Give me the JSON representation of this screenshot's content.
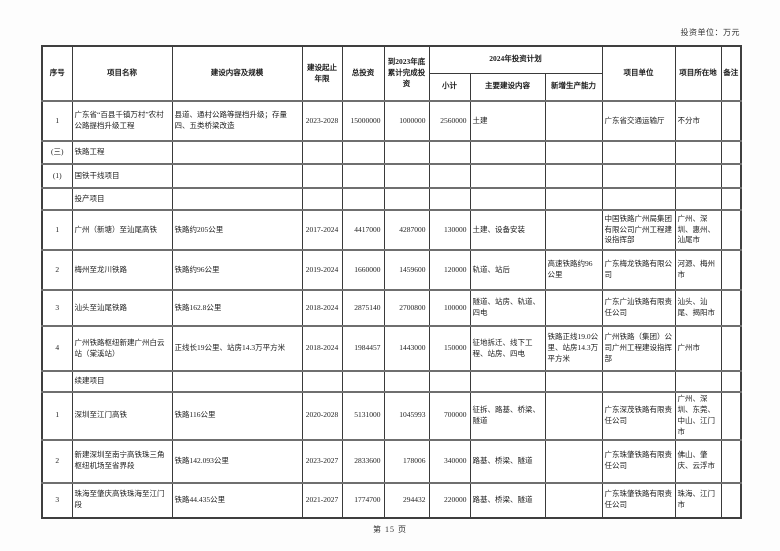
{
  "meta": {
    "unit_label": "投资单位：万元",
    "page_footer": "第 15 页"
  },
  "table": {
    "headers": {
      "seq": "序号",
      "name": "项目名称",
      "content": "建设内容及规模",
      "years": "建设起止年限",
      "total": "总投资",
      "done2023": "到2023年底累计完成投资",
      "plan2024": "2024年投资计划",
      "subtotal": "小计",
      "main_content": "主要建设内容",
      "capacity": "新增生产能力",
      "unit": "项目单位",
      "location": "项目所在地",
      "note": "备注"
    },
    "rows": [
      {
        "type": "data",
        "cells": [
          "1",
          "广东省“百县千镇万村”农村公路提档升级工程",
          "县道、通村公路等提档升级；存量四、五类桥梁改造",
          "2023-2028",
          "15000000",
          "1000000",
          "2560000",
          "土建",
          "",
          "广东省交通运输厅",
          "不分市",
          ""
        ]
      },
      {
        "type": "section",
        "cells": [
          "(三)",
          "铁路工程",
          "",
          "",
          "",
          "",
          "",
          "",
          "",
          "",
          "",
          ""
        ]
      },
      {
        "type": "section",
        "cells": [
          "(1)",
          "国铁干线项目",
          "",
          "",
          "",
          "",
          "",
          "",
          "",
          "",
          "",
          ""
        ]
      },
      {
        "type": "section",
        "cells": [
          "",
          "投产项目",
          "",
          "",
          "",
          "",
          "",
          "",
          "",
          "",
          "",
          ""
        ]
      },
      {
        "type": "data",
        "cells": [
          "1",
          "广州（新塘）至汕尾高铁",
          "铁路约205公里",
          "2017-2024",
          "4417000",
          "4287000",
          "130000",
          "土建、设备安装",
          "",
          "中国铁路广州局集团有限公司广州工程建设指挥部",
          "广州、深圳、惠州、汕尾市",
          ""
        ]
      },
      {
        "type": "data",
        "cells": [
          "2",
          "梅州至龙川铁路",
          "铁路约96公里",
          "2019-2024",
          "1660000",
          "1459600",
          "120000",
          "轨道、站后",
          "高速铁路约96公里",
          "广东梅龙铁路有限公司",
          "河源、梅州市",
          ""
        ]
      },
      {
        "type": "data",
        "cells": [
          "3",
          "汕头至汕尾铁路",
          "铁路162.8公里",
          "2018-2024",
          "2875140",
          "2700800",
          "100000",
          "隧道、站房、轨道、四电",
          "",
          "广东广汕铁路有限责任公司",
          "汕头、汕尾、揭阳市",
          ""
        ]
      },
      {
        "type": "data",
        "cells": [
          "4",
          "广州铁路枢纽新建广州白云站（棠溪站）",
          "正线长19公里、站房14.3万平方米",
          "2018-2024",
          "1984457",
          "1443000",
          "150000",
          "征地拆迁、线下工程、站房、四电",
          "铁路正线19.0公里、站房14.3万平方米",
          "广州铁路（集团）公司广州工程建设指挥部",
          "广州市",
          ""
        ]
      },
      {
        "type": "section",
        "cells": [
          "",
          "续建项目",
          "",
          "",
          "",
          "",
          "",
          "",
          "",
          "",
          "",
          ""
        ]
      },
      {
        "type": "data",
        "cells": [
          "1",
          "深圳至江门高铁",
          "铁路116公里",
          "2020-2028",
          "5131000",
          "1045993",
          "700000",
          "征拆、路基、桥梁、隧道",
          "",
          "广东深茂铁路有限责任公司",
          "广州、深圳、东莞、中山、江门市",
          ""
        ]
      },
      {
        "type": "data",
        "cells": [
          "2",
          "新建深圳至南宁高铁珠三角枢纽机场至省界段",
          "铁路142.093公里",
          "2023-2027",
          "2833600",
          "178006",
          "340000",
          "路基、桥梁、隧道",
          "",
          "广东珠肇铁路有限责任公司",
          "佛山、肇庆、云浮市",
          ""
        ]
      },
      {
        "type": "data",
        "cells": [
          "3",
          "珠海至肇庆高铁珠海至江门段",
          "铁路44.435公里",
          "2021-2027",
          "1774700",
          "294432",
          "220000",
          "路基、桥梁、隧道",
          "",
          "广东珠肇铁路有限责任公司",
          "珠海、江门市",
          ""
        ]
      }
    ]
  }
}
